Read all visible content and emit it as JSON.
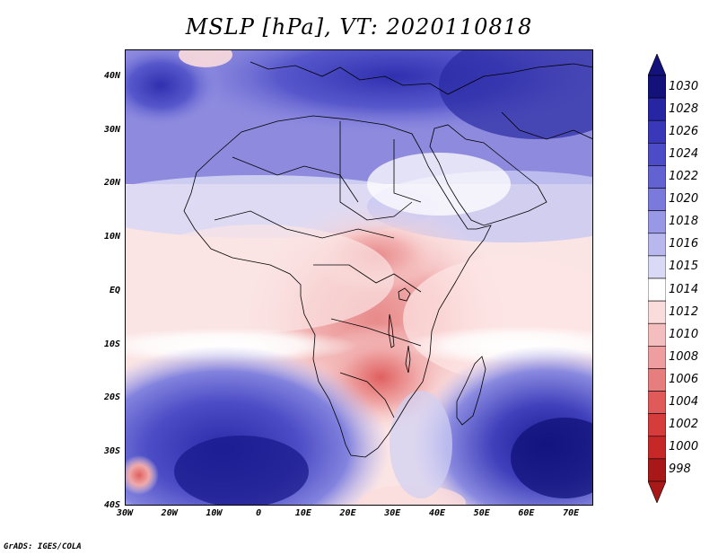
{
  "title": "MSLP [hPa], VT: 2020110818",
  "footer": "GrADS: IGES/COLA",
  "axes": {
    "lat_labels": [
      "40N",
      "30N",
      "20N",
      "10N",
      "EQ",
      "10S",
      "20S",
      "30S",
      "40S"
    ],
    "lat_values": [
      40,
      30,
      20,
      10,
      0,
      -10,
      -20,
      -30,
      -40
    ],
    "lon_labels": [
      "30W",
      "20W",
      "10W",
      "0",
      "10E",
      "20E",
      "30E",
      "40E",
      "50E",
      "60E",
      "70E"
    ],
    "lon_values": [
      -30,
      -20,
      -10,
      0,
      10,
      20,
      30,
      40,
      50,
      60,
      70
    ],
    "lat_range": [
      -40,
      45
    ],
    "lon_range": [
      -30,
      75
    ]
  },
  "colorbar": {
    "labels": [
      "1030",
      "1028",
      "1026",
      "1024",
      "1022",
      "1020",
      "1018",
      "1016",
      "1015",
      "1014",
      "1012",
      "1010",
      "1008",
      "1006",
      "1004",
      "1002",
      "1000",
      "998"
    ],
    "levels": [
      1030,
      1028,
      1026,
      1024,
      1022,
      1020,
      1018,
      1016,
      1015,
      1014,
      1012,
      1010,
      1008,
      1006,
      1004,
      1002,
      1000,
      998
    ],
    "colors": [
      "#12127a",
      "#2626a4",
      "#3838b8",
      "#4c4cc6",
      "#6262d2",
      "#7a7adc",
      "#9898e6",
      "#b8b8ef",
      "#dadaf7",
      "#ffffff",
      "#fbdcdc",
      "#f5bebe",
      "#ee9e9e",
      "#e77e7e",
      "#e05a5a",
      "#d63c3c",
      "#c62828",
      "#a81818"
    ]
  },
  "legend": {
    "low_color": "#fbdcdc",
    "mid_color": "#ffffff",
    "high_color": "#5a5ac8"
  }
}
